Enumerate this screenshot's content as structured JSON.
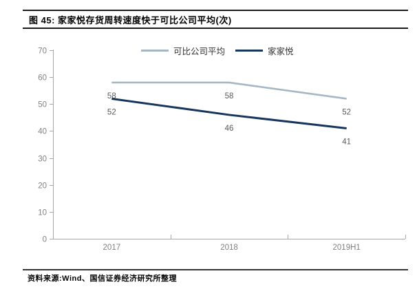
{
  "header": {
    "title": "图 45: 家家悦存货周转速度快于可比公司平均(次)"
  },
  "footer": {
    "source": "资料来源:Wind、国信证券经济研究所整理"
  },
  "chart_data": {
    "type": "line",
    "title": "图 45: 家家悦存货周转速度快于可比公司平均(次)",
    "categories": [
      "2017",
      "2018",
      "2019H1"
    ],
    "series": [
      {
        "name": "可比公司平均",
        "color": "#a6b7c4",
        "values": [
          58,
          58,
          52
        ]
      },
      {
        "name": "家家悦",
        "color": "#17365d",
        "values": [
          52,
          46,
          41
        ]
      }
    ],
    "ylim": [
      0,
      70
    ],
    "yticks": [
      0,
      10,
      20,
      30,
      40,
      50,
      60,
      70
    ],
    "xlabel": "",
    "ylabel": "",
    "grid": false,
    "legend_position": "top-center",
    "data_labels": true,
    "colors": {
      "axis": "#a6a6a6",
      "tick_label": "#808080",
      "data_label": "#595959"
    }
  }
}
